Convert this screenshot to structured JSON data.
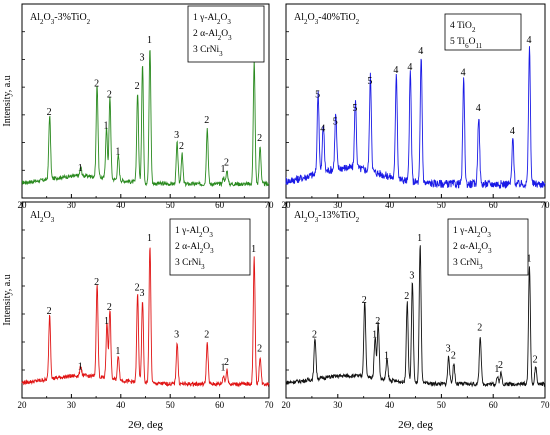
{
  "chart_data": [
    {
      "type": "line",
      "title": "Al2O3-3%TiO2",
      "color": "#2a8a1f",
      "ylabel": "Intensity, a.u",
      "xlim": [
        20,
        70
      ],
      "xticks": [
        20,
        30,
        40,
        50,
        60,
        70
      ],
      "legend": [
        "1 γ-Al2O3",
        "2 α-Al2O3",
        "3 CrNi3"
      ],
      "peaks": [
        {
          "x": 25.6,
          "h": 0.47,
          "label": "2"
        },
        {
          "x": 31.9,
          "h": 0.06,
          "label": "1"
        },
        {
          "x": 35.2,
          "h": 0.68,
          "label": "2"
        },
        {
          "x": 37.1,
          "h": 0.37,
          "label": "1"
        },
        {
          "x": 37.8,
          "h": 0.6,
          "label": "2"
        },
        {
          "x": 39.5,
          "h": 0.18,
          "label": "1"
        },
        {
          "x": 43.4,
          "h": 0.66,
          "label": "2"
        },
        {
          "x": 44.4,
          "h": 0.87,
          "label": "3"
        },
        {
          "x": 45.9,
          "h": 1.0,
          "label": "1"
        },
        {
          "x": 51.4,
          "h": 0.3,
          "label": "3"
        },
        {
          "x": 52.4,
          "h": 0.22,
          "label": "2"
        },
        {
          "x": 57.5,
          "h": 0.41,
          "label": "2"
        },
        {
          "x": 60.8,
          "h": 0.05,
          "label": "1"
        },
        {
          "x": 61.5,
          "h": 0.1,
          "label": "2"
        },
        {
          "x": 67.0,
          "h": 0.9,
          "label": "1"
        },
        {
          "x": 68.2,
          "h": 0.28,
          "label": "2"
        }
      ]
    },
    {
      "type": "line",
      "title": "Al2O3-40%TiO2",
      "color": "#1a1ae6",
      "ylabel": "",
      "xlim": [
        20,
        70
      ],
      "xticks": [
        20,
        30,
        40,
        50,
        60,
        70
      ],
      "legend": [
        "4 TiO2",
        "5 Ti6O11"
      ],
      "peaks": [
        {
          "x": 26.2,
          "h": 0.6,
          "label": "5"
        },
        {
          "x": 27.2,
          "h": 0.35,
          "label": "4"
        },
        {
          "x": 29.6,
          "h": 0.4,
          "label": "5"
        },
        {
          "x": 33.4,
          "h": 0.5,
          "label": "5"
        },
        {
          "x": 36.3,
          "h": 0.7,
          "label": "5"
        },
        {
          "x": 41.3,
          "h": 0.78,
          "label": "4"
        },
        {
          "x": 44.0,
          "h": 0.8,
          "label": "4"
        },
        {
          "x": 46.1,
          "h": 0.92,
          "label": "4"
        },
        {
          "x": 54.3,
          "h": 0.76,
          "label": "4"
        },
        {
          "x": 57.2,
          "h": 0.5,
          "label": "4"
        },
        {
          "x": 63.8,
          "h": 0.33,
          "label": "4"
        },
        {
          "x": 67.0,
          "h": 1.0,
          "label": "4"
        }
      ]
    },
    {
      "type": "line",
      "title": "Al2O3",
      "color": "#e01414",
      "ylabel": "Intensity, a.u",
      "xlim": [
        20,
        70
      ],
      "xticks": [
        20,
        30,
        40,
        50,
        60,
        70
      ],
      "legend": [
        "1 γ-Al2O3",
        "2 α-Al2O3",
        "3 CrNi3"
      ],
      "peaks": [
        {
          "x": 25.6,
          "h": 0.47,
          "label": "2"
        },
        {
          "x": 31.9,
          "h": 0.07,
          "label": "1"
        },
        {
          "x": 35.2,
          "h": 0.68,
          "label": "2"
        },
        {
          "x": 37.2,
          "h": 0.4,
          "label": "1"
        },
        {
          "x": 37.8,
          "h": 0.5,
          "label": "2"
        },
        {
          "x": 39.5,
          "h": 0.18,
          "label": "1"
        },
        {
          "x": 43.4,
          "h": 0.64,
          "label": "2"
        },
        {
          "x": 44.4,
          "h": 0.6,
          "label": "3"
        },
        {
          "x": 45.9,
          "h": 1.0,
          "label": "1"
        },
        {
          "x": 51.4,
          "h": 0.3,
          "label": "3"
        },
        {
          "x": 57.5,
          "h": 0.3,
          "label": "2"
        },
        {
          "x": 60.8,
          "h": 0.06,
          "label": "1"
        },
        {
          "x": 61.5,
          "h": 0.1,
          "label": "2"
        },
        {
          "x": 67.0,
          "h": 0.92,
          "label": "1"
        },
        {
          "x": 68.2,
          "h": 0.2,
          "label": "2"
        }
      ]
    },
    {
      "type": "line",
      "title": "Al2O3-13%TiO2",
      "color": "#111111",
      "ylabel": "",
      "xlim": [
        20,
        70
      ],
      "xticks": [
        20,
        30,
        40,
        50,
        60,
        70
      ],
      "legend": [
        "1 γ-Al2O3",
        "2 α-Al2O3",
        "3 CrNi3"
      ],
      "peaks": [
        {
          "x": 25.6,
          "h": 0.3,
          "label": "2"
        },
        {
          "x": 35.2,
          "h": 0.55,
          "label": "2"
        },
        {
          "x": 37.2,
          "h": 0.3,
          "label": "1"
        },
        {
          "x": 37.8,
          "h": 0.4,
          "label": "2"
        },
        {
          "x": 39.5,
          "h": 0.15,
          "label": "1"
        },
        {
          "x": 43.4,
          "h": 0.58,
          "label": "2"
        },
        {
          "x": 44.4,
          "h": 0.73,
          "label": "3"
        },
        {
          "x": 45.9,
          "h": 1.0,
          "label": "1"
        },
        {
          "x": 51.4,
          "h": 0.2,
          "label": "3"
        },
        {
          "x": 52.4,
          "h": 0.15,
          "label": "2"
        },
        {
          "x": 57.5,
          "h": 0.35,
          "label": "2"
        },
        {
          "x": 60.8,
          "h": 0.05,
          "label": "1"
        },
        {
          "x": 61.5,
          "h": 0.08,
          "label": "2"
        },
        {
          "x": 67.0,
          "h": 0.85,
          "label": "1"
        },
        {
          "x": 68.2,
          "h": 0.12,
          "label": "2"
        }
      ]
    }
  ],
  "shared_xlabel": "2Θ, deg"
}
